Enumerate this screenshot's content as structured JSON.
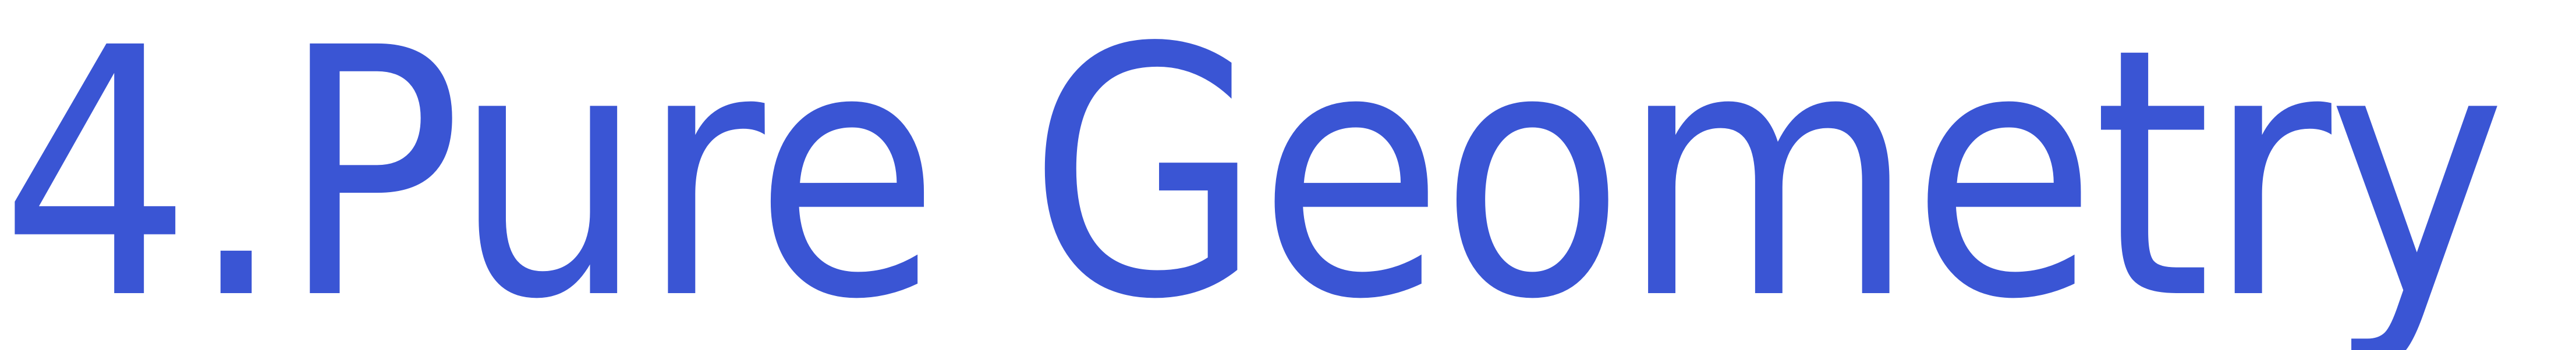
{
  "heading": {
    "text": "4.Pure Geometry",
    "color": "#3a55d4"
  }
}
